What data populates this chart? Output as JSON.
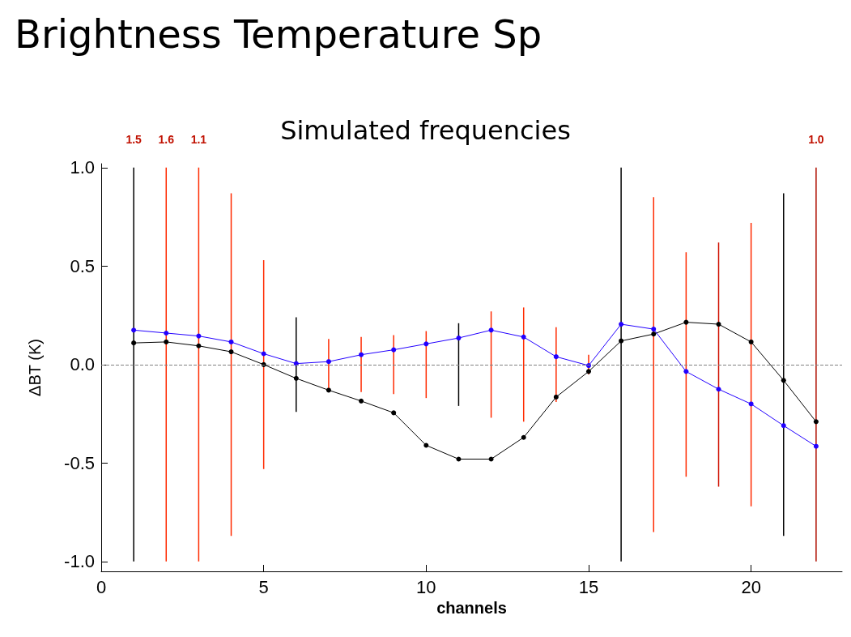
{
  "chart_data": {
    "type": "line",
    "title": "Simulated frequencies",
    "xlabel": "channels",
    "ylabel": "ΔBT (K)",
    "annotations": [
      "Brightness Temperature Sp",
      {
        "text": "1.5",
        "x": 1,
        "y": 1.0
      },
      {
        "text": "1.6",
        "x": 2,
        "y": 1.0
      },
      {
        "text": "1.1",
        "x": 3,
        "y": 1.0
      },
      {
        "text": "1.0",
        "x": 22,
        "y": 1.0
      }
    ],
    "x": [
      1,
      2,
      3,
      4,
      5,
      6,
      7,
      8,
      9,
      10,
      11,
      12,
      13,
      14,
      15,
      16,
      17,
      18,
      19,
      20,
      21,
      22
    ],
    "xlim": [
      0,
      22.8
    ],
    "xticks": [
      0,
      5,
      10,
      15,
      20
    ],
    "ylim": [
      -1.05,
      1.02
    ],
    "yticks": [
      {
        "value": -1,
        "label": "-1.0"
      },
      {
        "value": -0.5,
        "label": "-0.5"
      },
      {
        "value": 0,
        "label": "0.0"
      },
      {
        "value": 0.5,
        "label": "0.5"
      },
      {
        "value": 1,
        "label": "1.0"
      }
    ],
    "grid": false,
    "marker": "circle",
    "line_style": "solid",
    "ref_lines": [
      {
        "axis": "y",
        "value": 0,
        "color": "#808080",
        "line_style": "dashed"
      }
    ],
    "series": [
      {
        "type": "bar",
        "base": [
          -1.0,
          -1.0,
          -1.0,
          -0.87,
          -0.53,
          -0.24,
          -0.13,
          -0.14,
          -0.15,
          -0.17,
          -0.21,
          -0.27,
          -0.29,
          -0.19,
          -0.05,
          -1.0,
          -0.85,
          -0.57,
          -0.62,
          -0.72,
          -0.87,
          -1.0
        ],
        "values": [
          2.0,
          2.0,
          2.0,
          1.74,
          1.06,
          0.48,
          0.26,
          0.28,
          0.3,
          0.34,
          0.42,
          0.54,
          0.58,
          0.38,
          0.1,
          2.0,
          1.7,
          1.14,
          1.24,
          1.44,
          1.74,
          2.0
        ],
        "colors": [
          "#000000",
          "#ff2a00",
          "#ff2a00",
          "#ff2a00",
          "#ff2a00",
          "#000000",
          "#ff2a00",
          "#ff2a00",
          "#ff2a00",
          "#ff2a00",
          "#000000",
          "#ff2a00",
          "#ff2a00",
          "#ff2a00",
          "#ff2a00",
          "#000000",
          "#ff2a00",
          "#ff2a00",
          "#d01000",
          "#ff2a00",
          "#000000",
          "#b01000"
        ]
      },
      {
        "color": "#000000",
        "values": [
          0.11,
          0.115,
          0.095,
          0.065,
          0.0,
          -0.07,
          -0.13,
          -0.185,
          -0.245,
          -0.41,
          -0.48,
          -0.48,
          -0.37,
          -0.165,
          -0.035,
          0.12,
          0.155,
          0.215,
          0.205,
          0.115,
          -0.08,
          -0.29
        ]
      },
      {
        "color": "#2200ff",
        "values": [
          0.175,
          0.16,
          0.145,
          0.115,
          0.055,
          0.005,
          0.015,
          0.05,
          0.075,
          0.105,
          0.135,
          0.175,
          0.14,
          0.04,
          -0.005,
          0.205,
          0.18,
          -0.035,
          -0.125,
          -0.2,
          -0.31,
          -0.415
        ]
      }
    ]
  }
}
